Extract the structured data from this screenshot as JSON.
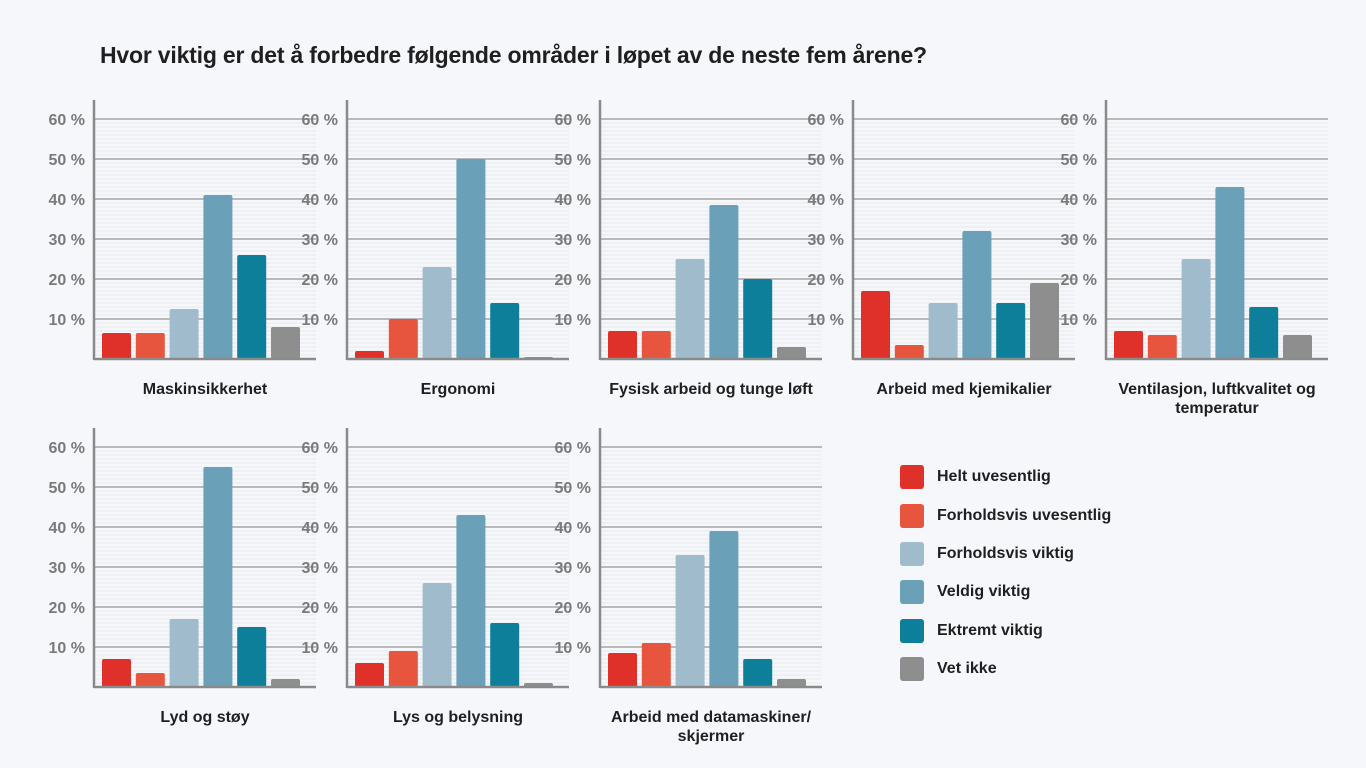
{
  "title": "Hvor viktig er det å forbedre følgende områder i løpet av de neste fem årene?",
  "legend_title": "",
  "chart_data": {
    "type": "bar",
    "ylim": [
      0,
      60
    ],
    "ytick_values": [
      10,
      20,
      30,
      40,
      50,
      60
    ],
    "ytick_labels": [
      "10 %",
      "20 %",
      "30 %",
      "40 %",
      "50 %",
      "60 %"
    ],
    "grid": true,
    "legend_position": "bottom-right",
    "series_names": [
      "Helt uvesentlig",
      "Forholdsvis uvesentlig",
      "Forholdsvis viktig",
      "Veldig viktig",
      "Ektremt viktig",
      "Vet ikke"
    ],
    "series_colors": [
      "#e0302a",
      "#e8553f",
      "#a0bccc",
      "#6aa0b8",
      "#0e7f9a",
      "#8e8e8e"
    ],
    "panels": [
      {
        "label": "Maskinsikkerhet",
        "values": [
          6.5,
          6.5,
          12.5,
          41,
          26,
          8
        ]
      },
      {
        "label": "Ergonomi",
        "values": [
          2,
          10,
          23,
          50,
          14,
          0.5
        ]
      },
      {
        "label": "Fysisk arbeid og tunge løft",
        "values": [
          7,
          7,
          25,
          38.5,
          20,
          3
        ]
      },
      {
        "label": "Arbeid med kjemikalier",
        "values": [
          17,
          3.5,
          14,
          32,
          14,
          19
        ]
      },
      {
        "label": "Ventilasjon, luftkvalitet og temperatur",
        "values": [
          7,
          6,
          25,
          43,
          13,
          6
        ]
      },
      {
        "label": "Lyd og støy",
        "values": [
          7,
          3.5,
          17,
          55,
          15,
          2
        ]
      },
      {
        "label": "Lys og belysning",
        "values": [
          6,
          9,
          26,
          43,
          16,
          1
        ]
      },
      {
        "label": "Arbeid med datamaskiner/ skjermer",
        "values": [
          8.5,
          11,
          33,
          39,
          7,
          2
        ]
      }
    ]
  }
}
